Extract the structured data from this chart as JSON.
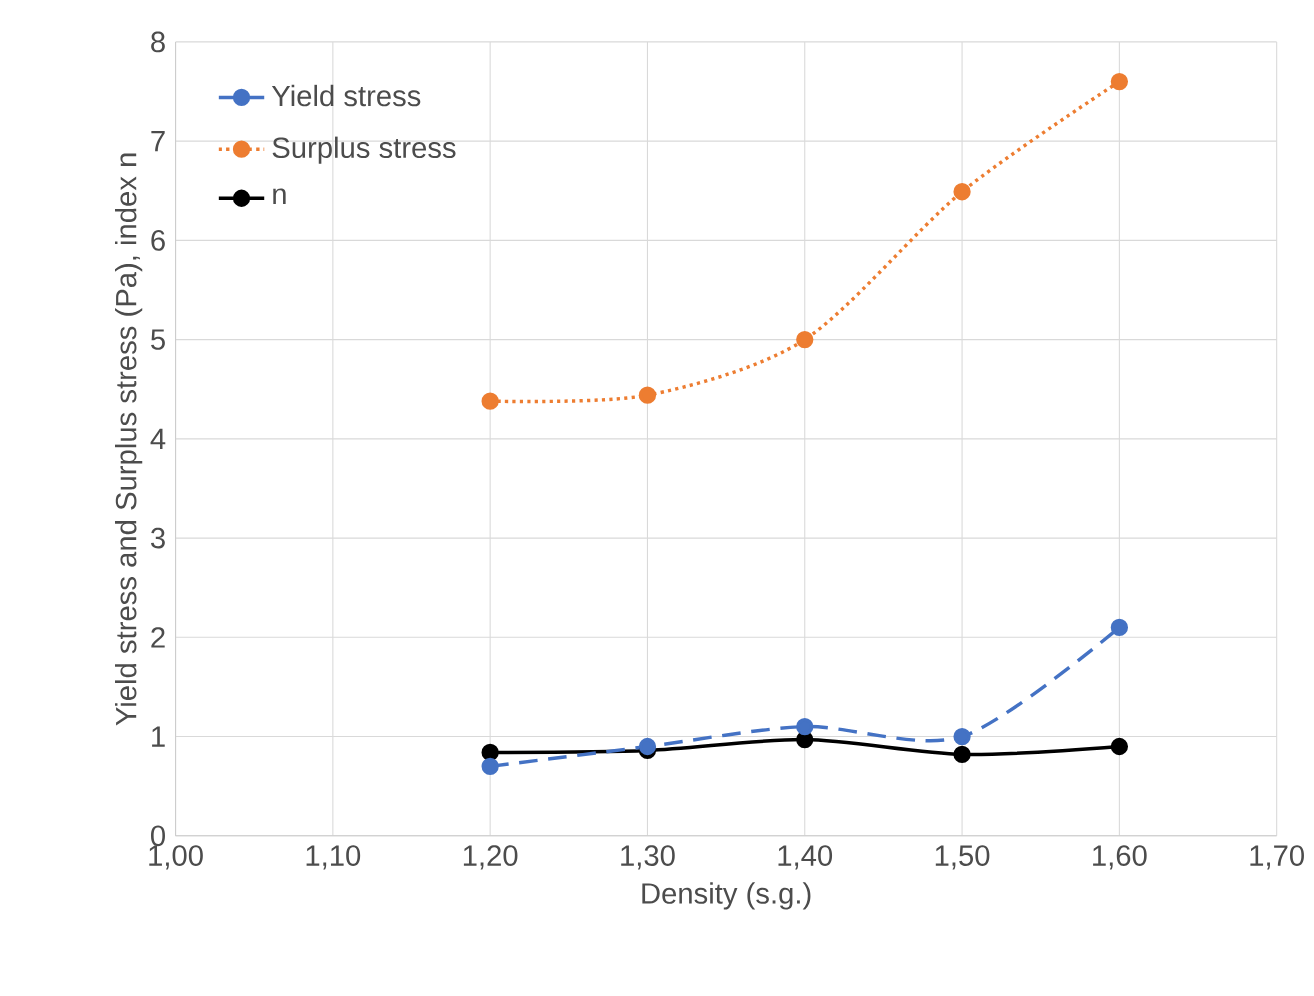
{
  "chart_data": {
    "type": "line",
    "xlabel": "Density (s.g.)",
    "ylabel": "Yield stress and Surplus stress (Pa), index n",
    "x": [
      1.2,
      1.3,
      1.4,
      1.5,
      1.6
    ],
    "series": [
      {
        "name": "Yield stress",
        "color": "#4472c4",
        "line_style": "dashed",
        "values": [
          0.7,
          0.9,
          1.1,
          1.0,
          2.1
        ]
      },
      {
        "name": "Surplus stress",
        "color": "#ed7d31",
        "line_style": "dotted",
        "values": [
          4.38,
          4.44,
          5.0,
          6.49,
          7.6
        ]
      },
      {
        "name": "n",
        "color": "#000000",
        "line_style": "solid",
        "values": [
          0.84,
          0.86,
          0.97,
          0.82,
          0.9
        ]
      }
    ],
    "xlim": [
      1.0,
      1.7
    ],
    "xticks": [
      {
        "value": 1.0,
        "label": "1,00"
      },
      {
        "value": 1.1,
        "label": "1,10"
      },
      {
        "value": 1.2,
        "label": "1,20"
      },
      {
        "value": 1.3,
        "label": "1,30"
      },
      {
        "value": 1.4,
        "label": "1,40"
      },
      {
        "value": 1.5,
        "label": "1,50"
      },
      {
        "value": 1.6,
        "label": "1,60"
      },
      {
        "value": 1.7,
        "label": "1,70"
      }
    ],
    "ylim": [
      0,
      8
    ],
    "yticks": [
      0,
      1,
      2,
      3,
      4,
      5,
      6,
      7,
      8
    ],
    "grid": true,
    "legend": "top left",
    "marker": "circle"
  }
}
